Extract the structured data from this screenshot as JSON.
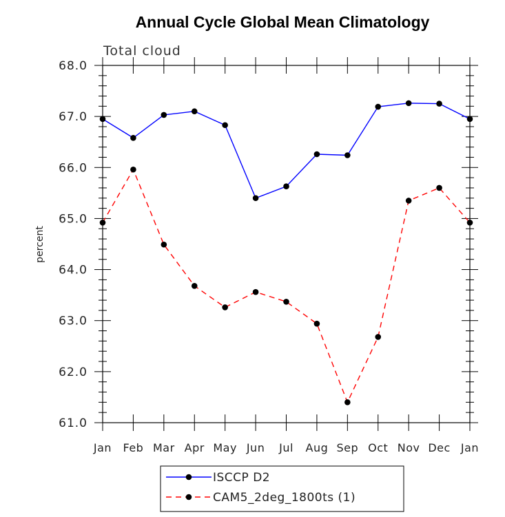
{
  "chart_data": {
    "type": "line",
    "title": "Annual Cycle Global Mean Climatology",
    "subtitle": "Total cloud",
    "xlabel": "",
    "ylabel": "percent",
    "categories": [
      "Jan",
      "Feb",
      "Mar",
      "Apr",
      "May",
      "Jun",
      "Jul",
      "Aug",
      "Sep",
      "Oct",
      "Nov",
      "Dec",
      "Jan"
    ],
    "ylim": [
      61.0,
      68.0
    ],
    "yticks": [
      "61.0",
      "62.0",
      "63.0",
      "64.0",
      "65.0",
      "66.0",
      "67.0",
      "68.0"
    ],
    "grid": false,
    "legend_position": "bottom",
    "series": [
      {
        "name": "ISCCP D2",
        "color": "#0000ff",
        "line_style": "solid",
        "marker": "filled-circle",
        "values": [
          66.95,
          66.58,
          67.03,
          67.1,
          66.83,
          65.4,
          65.63,
          66.26,
          66.24,
          67.19,
          67.26,
          67.25,
          66.95
        ]
      },
      {
        "name": "CAM5_2deg_1800ts (1)",
        "color": "#ff0000",
        "line_style": "dashed",
        "marker": "filled-circle",
        "values": [
          64.92,
          65.96,
          64.49,
          63.68,
          63.26,
          63.56,
          63.37,
          62.94,
          61.4,
          62.68,
          65.35,
          65.6,
          64.92
        ]
      }
    ]
  }
}
